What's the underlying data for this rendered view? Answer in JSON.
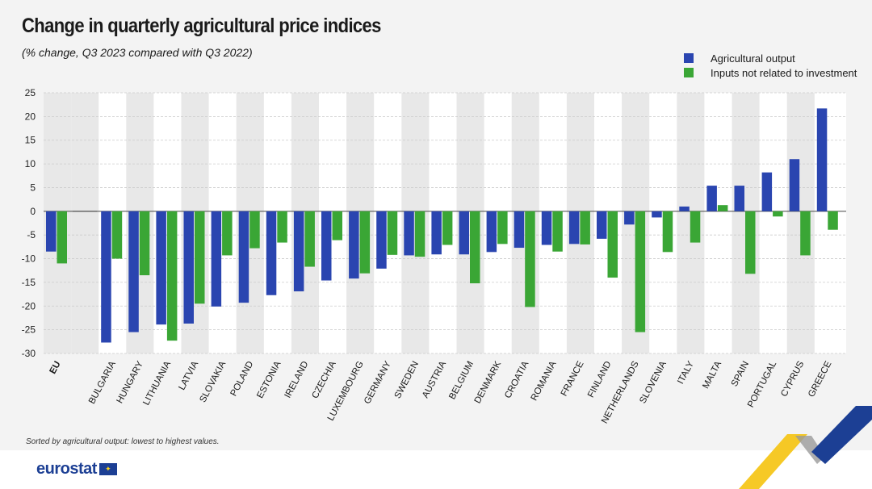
{
  "title": "Change in quarterly agricultural price indices",
  "subtitle": "(% change, Q3 2023 compared with Q3 2022)",
  "footnote": "Sorted by agricultural output: lowest to highest values.",
  "logo": "eurostat",
  "colors": {
    "output": "#2a45b0",
    "inputs": "#3aa635",
    "band": "#e8e8e8",
    "grid": "#cccccc"
  },
  "chart_data": {
    "type": "bar",
    "legend_position": "top-right",
    "ylim": [
      -30,
      25
    ],
    "yticks": [
      25,
      20,
      15,
      10,
      5,
      0,
      -5,
      -10,
      -15,
      -20,
      -25,
      -30
    ],
    "grid": true,
    "categories": [
      "EU",
      "BULGARIA",
      "HUNGARY",
      "LITHUANIA",
      "LATVIA",
      "SLOVAKIA",
      "POLAND",
      "ESTONIA",
      "IRELAND",
      "CZECHIA",
      "LUXEMBOURG",
      "GERMANY",
      "SWEDEN",
      "AUSTRIA",
      "BELGIUM",
      "DENMARK",
      "CROATIA",
      "ROMANIA",
      "FRANCE",
      "FINLAND",
      "NETHERLANDS",
      "SLOVENIA",
      "ITALY",
      "MALTA",
      "SPAIN",
      "PORTUGAL",
      "CYPRUS",
      "GREECE"
    ],
    "series": [
      {
        "name": "Agricultural output",
        "values": [
          -8.5,
          -27.7,
          -25.5,
          -23.9,
          -23.7,
          -20.1,
          -19.3,
          -17.7,
          -16.9,
          -14.6,
          -14.2,
          -12.1,
          -9.3,
          -9.1,
          -9.1,
          -8.6,
          -7.7,
          -7.1,
          -6.9,
          -5.8,
          -2.8,
          -1.3,
          1.0,
          5.4,
          5.4,
          8.2,
          11.0,
          21.7
        ]
      },
      {
        "name": "Inputs not related to investment",
        "values": [
          -11.0,
          -10.0,
          -13.5,
          -27.3,
          -19.5,
          -9.3,
          -7.8,
          -6.6,
          -11.7,
          -6.1,
          -13.1,
          -9.2,
          -9.6,
          -7.1,
          -15.2,
          -6.9,
          -20.2,
          -8.5,
          -7.0,
          -14.0,
          -25.5,
          -8.6,
          -6.6,
          1.3,
          -13.2,
          -1.1,
          -9.3,
          -3.9
        ]
      }
    ]
  }
}
